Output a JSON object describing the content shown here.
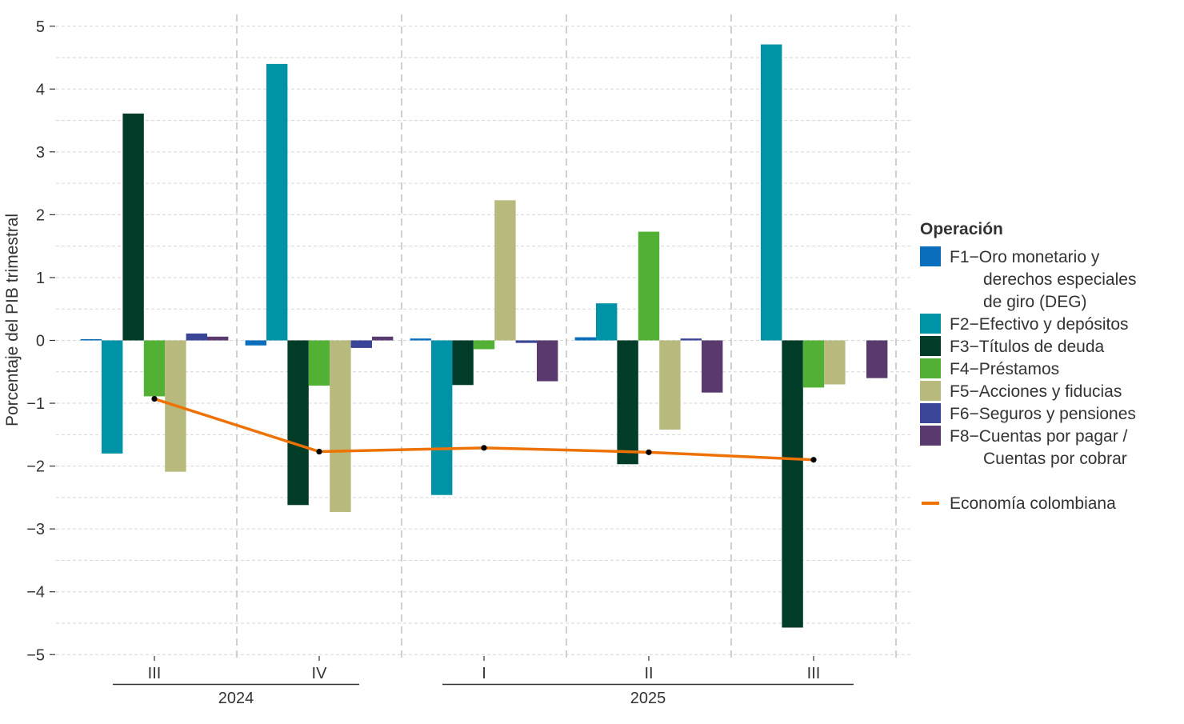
{
  "chart_data": {
    "type": "bar",
    "title": "",
    "xlabel": "",
    "ylabel": "Porcentaje del PIB trimestral",
    "ylim": [
      -5,
      5
    ],
    "yticks": [
      -5,
      -4,
      -3,
      -2,
      -1,
      0,
      1,
      2,
      3,
      4,
      5
    ],
    "ytick_labels": [
      "−5",
      "−4",
      "−3",
      "−2",
      "−1",
      "0",
      "1",
      "2",
      "3",
      "4",
      "5"
    ],
    "grid": true,
    "categories": [
      "III",
      "IV",
      "I",
      "II",
      "III"
    ],
    "year_groups": [
      {
        "label": "2024",
        "categories": [
          "III",
          "IV"
        ]
      },
      {
        "label": "2025",
        "categories": [
          "I",
          "II",
          "III"
        ]
      }
    ],
    "legend": {
      "title": "Operación",
      "position": "right"
    },
    "series": [
      {
        "name": "F1−Oro monetario y derechos especiales de giro (DEG)",
        "legend_lines": [
          "F1−Oro monetario y",
          "derechos especiales",
          "de giro (DEG)"
        ],
        "color": "#0a6ebd",
        "values": [
          0.02,
          -0.08,
          0.03,
          0.05,
          0.0
        ]
      },
      {
        "name": "F2−Efectivo y depósitos",
        "legend_lines": [
          "F2−Efectivo y depósitos"
        ],
        "color": "#0093a8",
        "values": [
          -1.8,
          4.4,
          -2.46,
          0.59,
          4.71
        ]
      },
      {
        "name": "F3−Títulos de deuda",
        "legend_lines": [
          "F3−Títulos de deuda"
        ],
        "color": "#003c28",
        "values": [
          3.61,
          -2.62,
          -0.71,
          -1.97,
          -4.57
        ]
      },
      {
        "name": "F4−Préstamos",
        "legend_lines": [
          "F4−Préstamos"
        ],
        "color": "#52b034",
        "values": [
          -0.89,
          -0.72,
          -0.14,
          1.73,
          -0.75
        ]
      },
      {
        "name": "F5−Acciones y fiducias",
        "legend_lines": [
          "F5−Acciones y fiducias"
        ],
        "color": "#b8b97c",
        "values": [
          -2.09,
          -2.73,
          2.23,
          -1.42,
          -0.7
        ]
      },
      {
        "name": "F6−Seguros y pensiones",
        "legend_lines": [
          "F6−Seguros y pensiones"
        ],
        "color": "#3b4597",
        "values": [
          0.11,
          -0.12,
          -0.04,
          0.03,
          0.0
        ]
      },
      {
        "name": "F8−Cuentas por pagar / Cuentas por cobrar",
        "legend_lines": [
          "F8−Cuentas por pagar /",
          "Cuentas por cobrar"
        ],
        "color": "#5a3a6e",
        "values": [
          0.06,
          0.06,
          -0.65,
          -0.83,
          -0.6
        ]
      }
    ],
    "line_series": {
      "name": "Economía colombiana",
      "color": "#ee7203",
      "values": [
        -0.93,
        -1.77,
        -1.71,
        -1.78,
        -1.9
      ]
    }
  }
}
